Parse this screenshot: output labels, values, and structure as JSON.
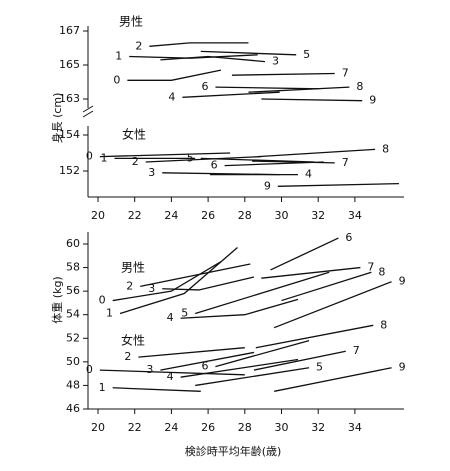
{
  "chart_data": [
    {
      "type": "line",
      "ylabel": "身長 (cm)",
      "annotations": [
        "男性"
      ],
      "color": "#111",
      "xlim": [
        19.5,
        36.5
      ],
      "ylim": [
        162.5,
        167.5
      ],
      "yticks": [
        163,
        165,
        167
      ],
      "series": [
        {
          "name": "0",
          "x": [
            21.6,
            24,
            26.7
          ],
          "values": [
            164.1,
            164.1,
            164.7
          ]
        },
        {
          "name": "1",
          "x": [
            21.7,
            25,
            28.7
          ],
          "values": [
            165.5,
            165.4,
            165.6
          ]
        },
        {
          "name": "2",
          "x": [
            22.8,
            25,
            28.2
          ],
          "values": [
            166.1,
            166.3,
            166.3
          ]
        },
        {
          "name": "3",
          "x": [
            23.4,
            26,
            29.1
          ],
          "values": [
            165.3,
            165.5,
            165.2
          ]
        },
        {
          "name": "4",
          "x": [
            24.6,
            29.9
          ],
          "values": [
            163.1,
            163.4
          ]
        },
        {
          "name": "5",
          "x": [
            25.6,
            30.8
          ],
          "values": [
            165.8,
            165.6
          ]
        },
        {
          "name": "6",
          "x": [
            26.4,
            32
          ],
          "values": [
            163.7,
            163.6
          ]
        },
        {
          "name": "7",
          "x": [
            27.3,
            32.9
          ],
          "values": [
            164.4,
            164.5
          ]
        },
        {
          "name": "8",
          "x": [
            28.2,
            33.7
          ],
          "values": [
            163.4,
            163.7
          ]
        },
        {
          "name": "9",
          "x": [
            28.9,
            34.4
          ],
          "values": [
            163.0,
            162.9
          ]
        }
      ]
    },
    {
      "type": "line",
      "annotations": [
        "女性"
      ],
      "color": "#111",
      "xlim": [
        19.5,
        36.5
      ],
      "xticks": [
        20,
        22,
        24,
        26,
        28,
        30,
        32,
        34
      ],
      "ylim": [
        150.6,
        154.8
      ],
      "yticks": [
        152,
        154
      ],
      "series": [
        {
          "name": "0",
          "x": [
            20.1,
            27.2
          ],
          "values": [
            152.8,
            153.0
          ]
        },
        {
          "name": "1",
          "x": [
            20.9,
            25.3
          ],
          "values": [
            152.7,
            152.7
          ]
        },
        {
          "name": "2",
          "x": [
            22.6,
            28.9
          ],
          "values": [
            152.5,
            152.8
          ]
        },
        {
          "name": "3",
          "x": [
            23.5,
            29.9
          ],
          "values": [
            151.9,
            151.8
          ]
        },
        {
          "name": "4",
          "x": [
            26.1,
            30.9
          ],
          "values": [
            151.8,
            151.8
          ]
        },
        {
          "name": "5",
          "x": [
            25.6,
            31.8
          ],
          "values": [
            152.7,
            152.5
          ]
        },
        {
          "name": "6",
          "x": [
            26.9,
            32.3
          ],
          "values": [
            152.3,
            152.5
          ]
        },
        {
          "name": "7",
          "x": [
            28.4,
            32.9
          ],
          "values": [
            152.55,
            152.45
          ]
        },
        {
          "name": "8",
          "x": [
            28.7,
            35.1
          ],
          "values": [
            152.8,
            153.2
          ]
        },
        {
          "name": "9",
          "x": [
            29.8,
            36.4
          ],
          "values": [
            151.15,
            151.3
          ]
        }
      ]
    },
    {
      "type": "line",
      "ylabel": "体重 (kg)",
      "xlabel": "検診時平均年齢(歳)",
      "annotations": [
        "男性",
        "女性"
      ],
      "color": "#111",
      "xlim": [
        19.5,
        36.5
      ],
      "xticks": [
        20,
        22,
        24,
        26,
        28,
        30,
        32,
        34
      ],
      "ylim": [
        46,
        61
      ],
      "yticks": [
        46,
        48,
        50,
        52,
        54,
        56,
        58,
        60
      ],
      "series": [
        {
          "name": "0",
          "x": [
            20.8,
            24,
            26.7
          ],
          "values": [
            55.2,
            56.0,
            58.5
          ]
        },
        {
          "name": "1",
          "x": [
            21.2,
            24.7,
            27.6
          ],
          "values": [
            54.1,
            55.8,
            59.7
          ]
        },
        {
          "name": "2",
          "x": [
            22.3,
            28.3
          ],
          "values": [
            56.4,
            58.3
          ]
        },
        {
          "name": "3",
          "x": [
            23.5,
            25.5,
            28.5
          ],
          "values": [
            56.2,
            56.1,
            57.2
          ]
        },
        {
          "name": "4",
          "x": [
            24.5,
            28,
            30.9
          ],
          "values": [
            53.7,
            54.0,
            55.3
          ]
        },
        {
          "name": "5",
          "x": [
            25.3,
            32.6
          ],
          "values": [
            54.1,
            57.6
          ]
        },
        {
          "name": "6",
          "x": [
            29.4,
            33.1
          ],
          "values": [
            57.8,
            60.5
          ]
        },
        {
          "name": "7",
          "x": [
            28.9,
            34.3
          ],
          "values": [
            57.1,
            58.0
          ]
        },
        {
          "name": "8",
          "x": [
            30,
            34.9
          ],
          "values": [
            55.2,
            57.6
          ]
        },
        {
          "name": "9",
          "x": [
            29.6,
            36
          ],
          "values": [
            52.9,
            56.8
          ]
        },
        {
          "name": "0",
          "x": [
            20.1,
            28
          ],
          "values": [
            49.3,
            48.9
          ]
        },
        {
          "name": "1",
          "x": [
            20.8,
            25.6
          ],
          "values": [
            47.8,
            47.5
          ]
        },
        {
          "name": "2",
          "x": [
            22.2,
            28
          ],
          "values": [
            50.4,
            51.2
          ]
        },
        {
          "name": "3",
          "x": [
            23.4,
            28.5
          ],
          "values": [
            49.3,
            50.8
          ]
        },
        {
          "name": "4",
          "x": [
            24.5,
            30.9
          ],
          "values": [
            48.7,
            50.2
          ]
        },
        {
          "name": "5",
          "x": [
            25.3,
            31.5
          ],
          "values": [
            48.0,
            49.5
          ]
        },
        {
          "name": "6",
          "x": [
            26.4,
            31.5
          ],
          "values": [
            49.6,
            51.8
          ]
        },
        {
          "name": "7",
          "x": [
            28.5,
            33.5
          ],
          "values": [
            49.3,
            50.9
          ]
        },
        {
          "name": "8",
          "x": [
            28.6,
            35
          ],
          "values": [
            51.2,
            53.1
          ]
        },
        {
          "name": "9",
          "x": [
            29.6,
            36
          ],
          "values": [
            47.5,
            49.5
          ]
        }
      ]
    }
  ]
}
